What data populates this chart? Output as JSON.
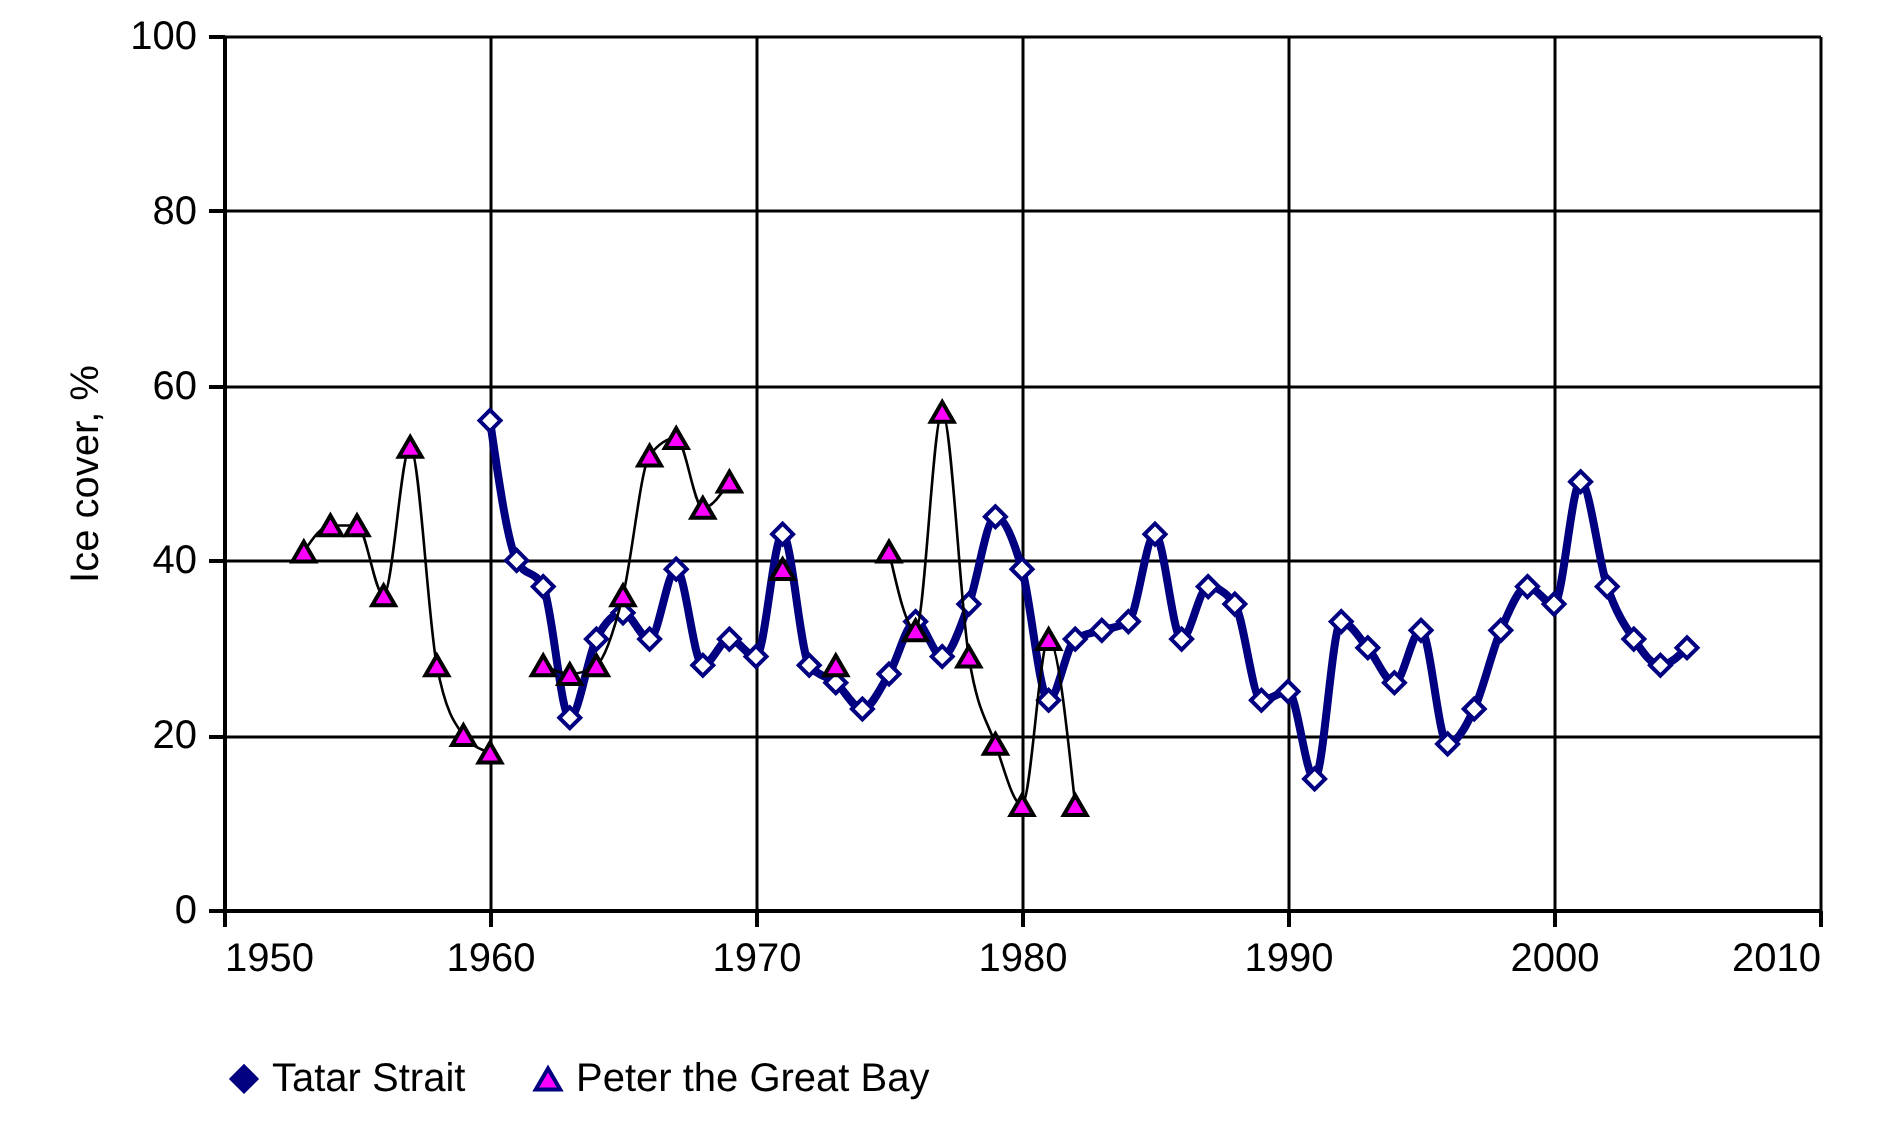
{
  "chart_data": {
    "type": "line",
    "ylabel": "Ice cover, %",
    "xlim": [
      1950,
      2010
    ],
    "xticks": [
      1950,
      1960,
      1970,
      1980,
      1990,
      2000,
      2010
    ],
    "ylim": [
      0,
      100
    ],
    "yticks": [
      0,
      20,
      40,
      60,
      80,
      100
    ],
    "grid": true,
    "legend": "bottom",
    "line_style": "solid",
    "series": [
      {
        "name": "Tatar Strait",
        "color": "#000080",
        "marker": "diamond",
        "x": [
          1960,
          1961,
          1962,
          1963,
          1964,
          1965,
          1966,
          1967,
          1968,
          1969,
          1970,
          1971,
          1972,
          1973,
          1974,
          1975,
          1976,
          1977,
          1978,
          1979,
          1980,
          1981,
          1982,
          1983,
          1984,
          1985,
          1986,
          1987,
          1988,
          1989,
          1990,
          1991,
          1992,
          1993,
          1994,
          1995,
          1996,
          1997,
          1998,
          1999,
          2000,
          2001,
          2002,
          2003,
          2004,
          2005
        ],
        "values": [
          56,
          40,
          37,
          22,
          31,
          34,
          31,
          39,
          28,
          31,
          29,
          43,
          28,
          26,
          23,
          27,
          33,
          29,
          35,
          45,
          39,
          24,
          31,
          32,
          33,
          43,
          31,
          37,
          35,
          24,
          25,
          15,
          33,
          30,
          26,
          32,
          19,
          23,
          32,
          37,
          35,
          49,
          37,
          31,
          28,
          30
        ]
      },
      {
        "name": "Peter the Great Bay",
        "color": "#ff00ff",
        "marker": "triangle",
        "x": [
          1953,
          1954,
          1955,
          1956,
          1957,
          1958,
          1959,
          1960,
          1961,
          1962,
          1963,
          1964,
          1965,
          1966,
          1967,
          1968,
          1969,
          1970,
          1971,
          1972,
          1973,
          1974,
          1975,
          1976,
          1977,
          1978,
          1979,
          1980,
          1981,
          1982
        ],
        "values": [
          41,
          44,
          44,
          36,
          53,
          28,
          20,
          18,
          null,
          28,
          27,
          28,
          36,
          52,
          54,
          46,
          49,
          null,
          39,
          null,
          28,
          null,
          41,
          32,
          57,
          29,
          19,
          12,
          31,
          12
        ]
      }
    ]
  }
}
